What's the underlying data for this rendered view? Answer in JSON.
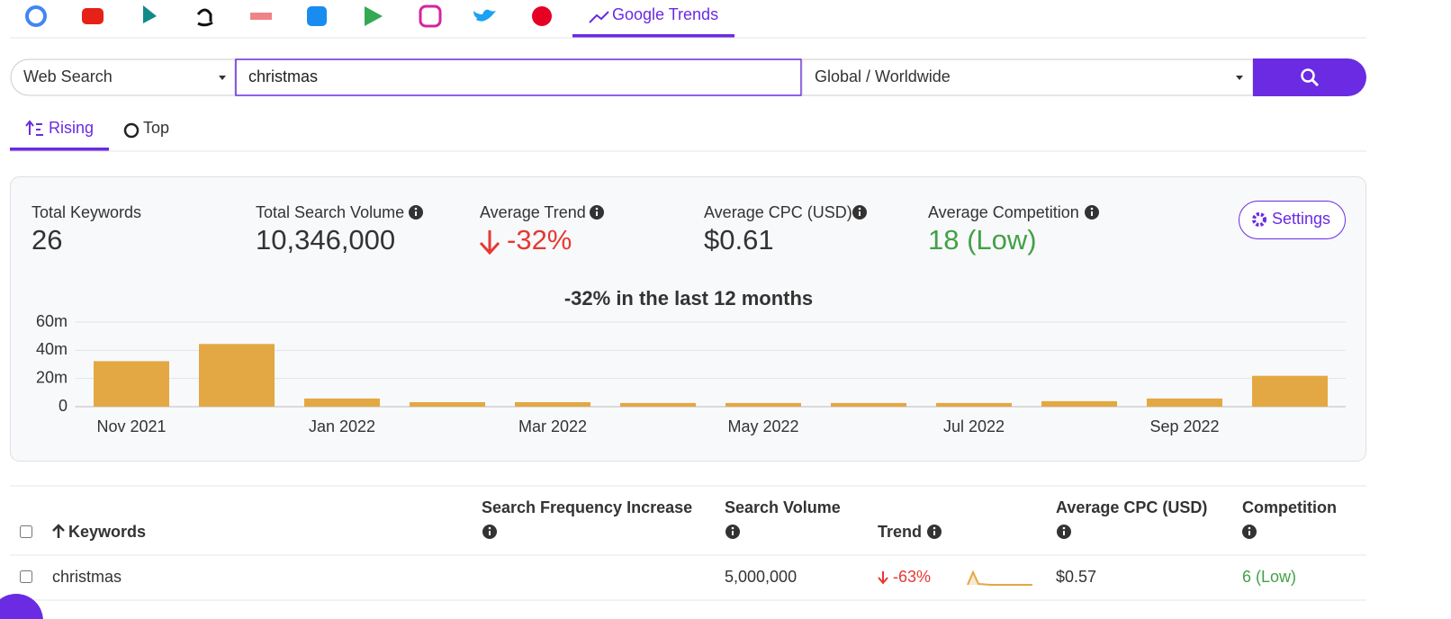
{
  "nav": {
    "active_tab": "Google Trends"
  },
  "search": {
    "type": "Web Search",
    "query": "christmas",
    "location": "Global / Worldwide"
  },
  "modes": [
    "Rising",
    "Top"
  ],
  "stats": [
    {
      "label": "Total Keywords",
      "value": "26"
    },
    {
      "label": "Total Search Volume",
      "value": "10,346,000"
    },
    {
      "label": "Average Trend",
      "value": "-32%"
    },
    {
      "label": "Average CPC (USD)",
      "value": "$0.61"
    },
    {
      "label": "Average Competition",
      "value": "18 (Low)"
    }
  ],
  "settings_button": "Settings",
  "chart_data": {
    "type": "bar",
    "title": "-32% in the last 12 months",
    "categories": [
      "Nov 2021",
      null,
      "Jan 2022",
      null,
      "Mar 2022",
      null,
      "May 2022",
      null,
      "Jul 2022",
      null,
      "Sep 2022",
      null
    ],
    "values": [
      32300000,
      44500000,
      5800000,
      3200000,
      3200000,
      2600000,
      2600000,
      2600000,
      2600000,
      3900000,
      5800000,
      21900000
    ],
    "color": "#e3a843",
    "ylim": [
      0,
      60000000
    ],
    "yticks": [
      0,
      {
        "value": 20000000,
        "label": "20m"
      },
      {
        "value": 40000000,
        "label": "40m"
      },
      {
        "value": 60000000,
        "label": "60m"
      }
    ],
    "grid": true
  },
  "table": {
    "headers": [
      "Keywords",
      "Search Frequency Increase",
      "Search Volume",
      "Trend",
      "Average CPC (USD)",
      "Competition"
    ],
    "rows": [
      {
        "keyword": "christmas",
        "search_volume": "5,000,000",
        "trend": "-63%",
        "cpc": "$0.57",
        "competition": "6 (Low)"
      }
    ]
  }
}
